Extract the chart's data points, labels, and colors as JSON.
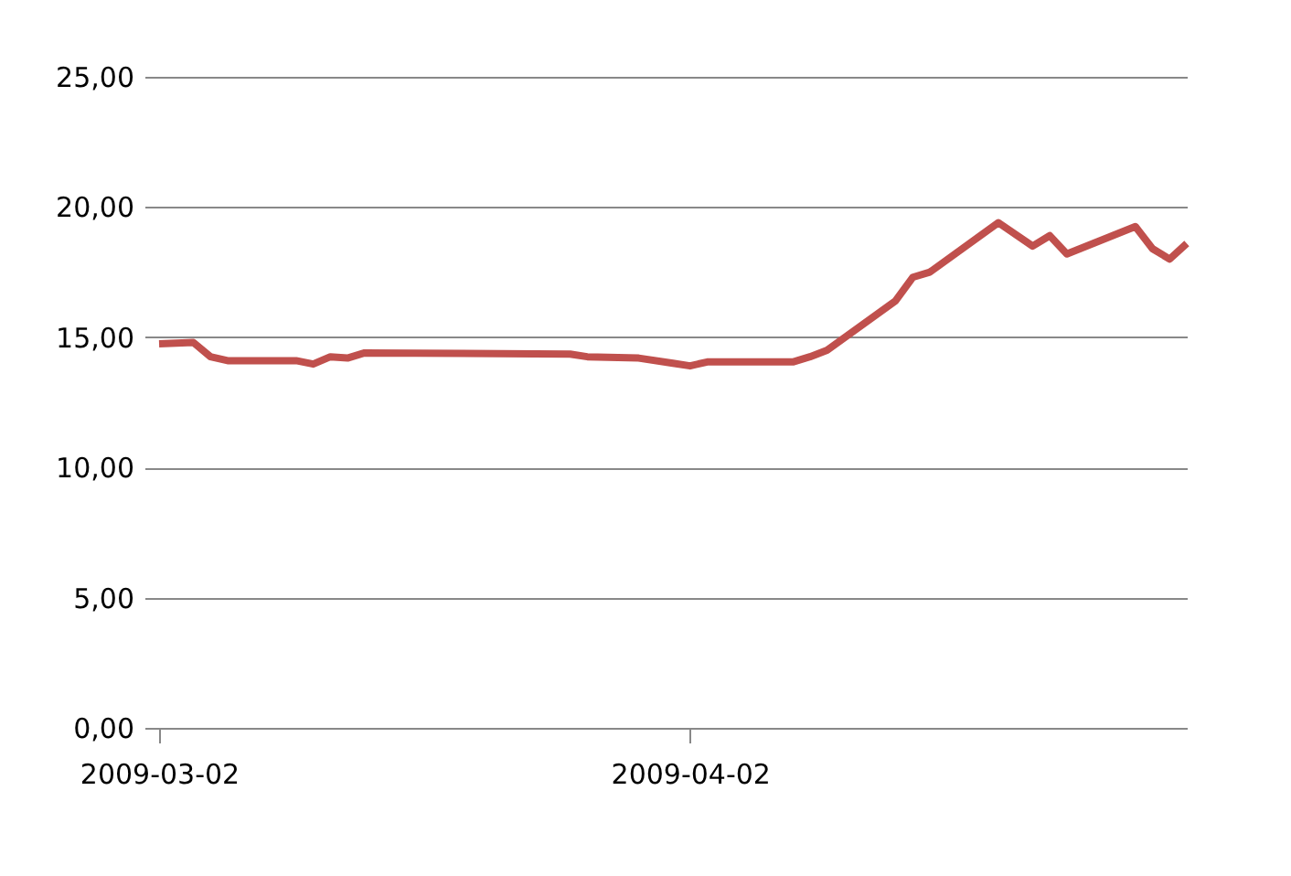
{
  "chart_data": {
    "type": "line",
    "x": [
      "2009-03-02",
      "2009-03-04",
      "2009-03-05",
      "2009-03-06",
      "2009-03-10",
      "2009-03-11",
      "2009-03-12",
      "2009-03-13",
      "2009-03-14",
      "2009-03-26",
      "2009-03-27",
      "2009-03-30",
      "2009-04-01",
      "2009-04-02",
      "2009-04-03",
      "2009-04-08",
      "2009-04-09",
      "2009-04-10",
      "2009-04-14",
      "2009-04-15",
      "2009-04-16",
      "2009-04-20",
      "2009-04-22",
      "2009-04-23",
      "2009-04-24",
      "2009-04-28",
      "2009-04-29",
      "2009-04-30",
      "2009-05-01"
    ],
    "series": [
      {
        "color": "#c0504d",
        "values": [
          14.75,
          14.8,
          14.25,
          14.1,
          14.1,
          13.97,
          14.25,
          14.2,
          14.4,
          14.35,
          14.25,
          14.2,
          14.0,
          13.9,
          14.05,
          14.05,
          14.25,
          14.5,
          16.4,
          17.3,
          17.5,
          19.4,
          18.5,
          18.9,
          18.2,
          19.25,
          18.4,
          18.0,
          18.6
        ]
      }
    ],
    "xlim": [
      "2009-03-02",
      "2009-05-01"
    ],
    "xticks": [
      "2009-03-02",
      "2009-04-02"
    ],
    "ylim": [
      0,
      25
    ],
    "yticks": [
      {
        "value": 0,
        "label": "0,00"
      },
      {
        "value": 5,
        "label": "5,00"
      },
      {
        "value": 10,
        "label": "10,00"
      },
      {
        "value": 15,
        "label": "15,00"
      },
      {
        "value": 20,
        "label": "20,00"
      },
      {
        "value": 25,
        "label": "25,00"
      }
    ],
    "grid": "y",
    "legend": false,
    "marker": "none",
    "line_style": "solid"
  }
}
